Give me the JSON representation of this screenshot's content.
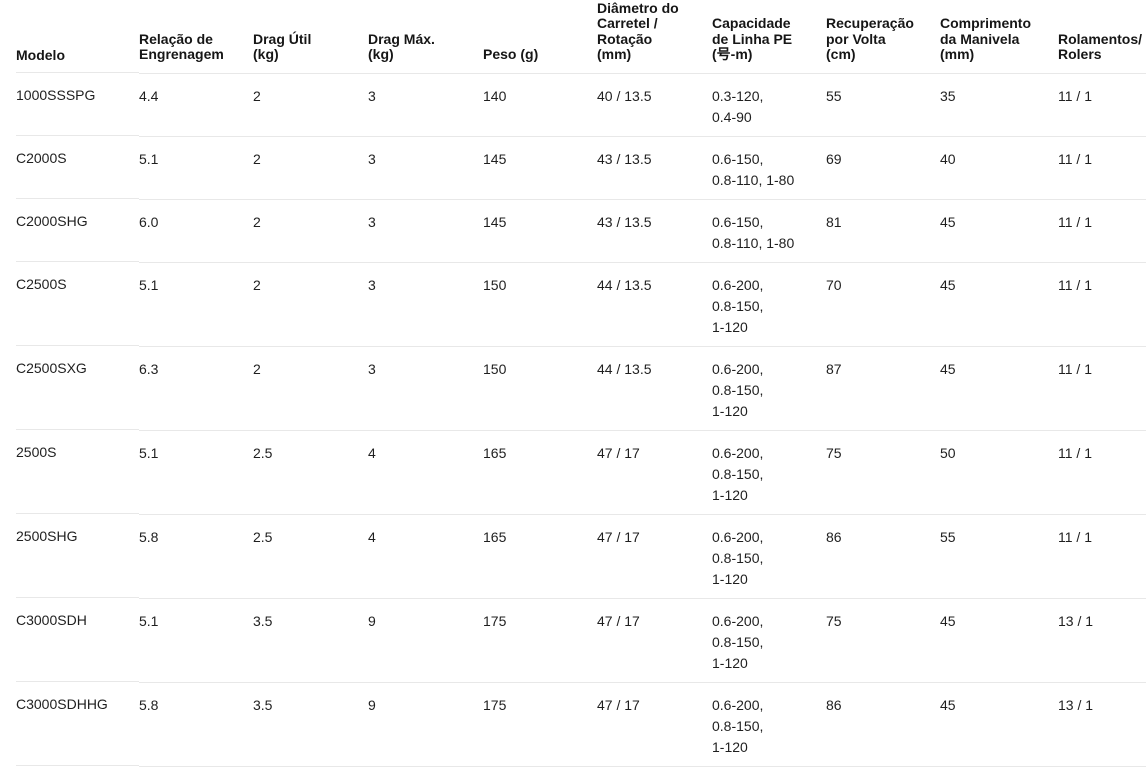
{
  "page": {
    "background_color": "#ffffff",
    "text_color": "#1f1f1f",
    "header_text_color": "#161616",
    "divider_color": "#e8e8e8"
  },
  "table": {
    "columns": [
      {
        "id": "modelo",
        "label": "Modelo"
      },
      {
        "id": "relacao",
        "label": "Relação de\nEngrenagem"
      },
      {
        "id": "drag_util",
        "label": "Drag Útil\n(kg)"
      },
      {
        "id": "drag_max",
        "label": "Drag Máx.\n(kg)"
      },
      {
        "id": "peso",
        "label": "Peso (g)"
      },
      {
        "id": "diametro",
        "label": "Diâmetro do\nCarretel /\nRotação\n(mm)"
      },
      {
        "id": "capacidade",
        "label": "Capacidade\nde Linha PE\n(号-m)"
      },
      {
        "id": "recuperacao",
        "label": "Recuperação\npor Volta\n(cm)"
      },
      {
        "id": "manivela",
        "label": "Comprimento\nda Manivela\n(mm)"
      },
      {
        "id": "rolamentos",
        "label": "Rolamentos/\nRolers"
      }
    ],
    "rows": [
      {
        "modelo": "1000SSSPG",
        "relacao": "4.4",
        "drag_util": "2",
        "drag_max": "3",
        "peso": "140",
        "diametro": "40 / 13.5",
        "capacidade": "0.3-120,\n0.4-90",
        "recuperacao": "55",
        "manivela": "35",
        "rolamentos": "11 / 1"
      },
      {
        "modelo": "C2000S",
        "relacao": "5.1",
        "drag_util": "2",
        "drag_max": "3",
        "peso": "145",
        "diametro": "43 / 13.5",
        "capacidade": "0.6-150,\n0.8-110, 1-80",
        "recuperacao": "69",
        "manivela": "40",
        "rolamentos": "11 / 1"
      },
      {
        "modelo": "C2000SHG",
        "relacao": "6.0",
        "drag_util": "2",
        "drag_max": "3",
        "peso": "145",
        "diametro": "43 / 13.5",
        "capacidade": "0.6-150,\n0.8-110, 1-80",
        "recuperacao": "81",
        "manivela": "45",
        "rolamentos": "11 / 1"
      },
      {
        "modelo": "C2500S",
        "relacao": "5.1",
        "drag_util": "2",
        "drag_max": "3",
        "peso": "150",
        "diametro": "44 / 13.5",
        "capacidade": "0.6-200,\n0.8-150,\n1-120",
        "recuperacao": "70",
        "manivela": "45",
        "rolamentos": "11 / 1"
      },
      {
        "modelo": "C2500SXG",
        "relacao": "6.3",
        "drag_util": "2",
        "drag_max": "3",
        "peso": "150",
        "diametro": "44 / 13.5",
        "capacidade": "0.6-200,\n0.8-150,\n1-120",
        "recuperacao": "87",
        "manivela": "45",
        "rolamentos": "11 / 1"
      },
      {
        "modelo": "2500S",
        "relacao": "5.1",
        "drag_util": "2.5",
        "drag_max": "4",
        "peso": "165",
        "diametro": "47 / 17",
        "capacidade": "0.6-200,\n0.8-150,\n1-120",
        "recuperacao": "75",
        "manivela": "50",
        "rolamentos": "11 / 1"
      },
      {
        "modelo": "2500SHG",
        "relacao": "5.8",
        "drag_util": "2.5",
        "drag_max": "4",
        "peso": "165",
        "diametro": "47 / 17",
        "capacidade": "0.6-200,\n0.8-150,\n1-120",
        "recuperacao": "86",
        "manivela": "55",
        "rolamentos": "11 / 1"
      },
      {
        "modelo": "C3000SDH",
        "relacao": "5.1",
        "drag_util": "3.5",
        "drag_max": "9",
        "peso": "175",
        "diametro": "47 / 17",
        "capacidade": "0.6-200,\n0.8-150,\n1-120",
        "recuperacao": "75",
        "manivela": "45",
        "rolamentos": "13 / 1"
      },
      {
        "modelo": "C3000SDHHG",
        "relacao": "5.8",
        "drag_util": "3.5",
        "drag_max": "9",
        "peso": "175",
        "diametro": "47 / 17",
        "capacidade": "0.6-200,\n0.8-150,\n1-120",
        "recuperacao": "86",
        "manivela": "45",
        "rolamentos": "13 / 1"
      }
    ]
  },
  "chart_data": {
    "type": "table",
    "columns": [
      "Modelo",
      "Relação de Engrenagem",
      "Drag Útil (kg)",
      "Drag Máx. (kg)",
      "Peso (g)",
      "Diâmetro do Carretel / Rotação (mm)",
      "Capacidade de Linha PE (号-m)",
      "Recuperação por Volta (cm)",
      "Comprimento da Manivela (mm)",
      "Rolamentos/Rolers"
    ],
    "rows": [
      [
        "1000SSSPG",
        "4.4",
        "2",
        "3",
        "140",
        "40 / 13.5",
        "0.3-120, 0.4-90",
        "55",
        "35",
        "11 / 1"
      ],
      [
        "C2000S",
        "5.1",
        "2",
        "3",
        "145",
        "43 / 13.5",
        "0.6-150, 0.8-110, 1-80",
        "69",
        "40",
        "11 / 1"
      ],
      [
        "C2000SHG",
        "6.0",
        "2",
        "3",
        "145",
        "43 / 13.5",
        "0.6-150, 0.8-110, 1-80",
        "81",
        "45",
        "11 / 1"
      ],
      [
        "C2500S",
        "5.1",
        "2",
        "3",
        "150",
        "44 / 13.5",
        "0.6-200, 0.8-150, 1-120",
        "70",
        "45",
        "11 / 1"
      ],
      [
        "C2500SXG",
        "6.3",
        "2",
        "3",
        "150",
        "44 / 13.5",
        "0.6-200, 0.8-150, 1-120",
        "87",
        "45",
        "11 / 1"
      ],
      [
        "2500S",
        "5.1",
        "2.5",
        "4",
        "165",
        "47 / 17",
        "0.6-200, 0.8-150, 1-120",
        "75",
        "50",
        "11 / 1"
      ],
      [
        "2500SHG",
        "5.8",
        "2.5",
        "4",
        "165",
        "47 / 17",
        "0.6-200, 0.8-150, 1-120",
        "86",
        "55",
        "11 / 1"
      ],
      [
        "C3000SDH",
        "5.1",
        "3.5",
        "9",
        "175",
        "47 / 17",
        "0.6-200, 0.8-150, 1-120",
        "75",
        "45",
        "13 / 1"
      ],
      [
        "C3000SDHHG",
        "5.8",
        "3.5",
        "9",
        "175",
        "47 / 17",
        "0.6-200, 0.8-150, 1-120",
        "86",
        "45",
        "13 / 1"
      ]
    ]
  }
}
